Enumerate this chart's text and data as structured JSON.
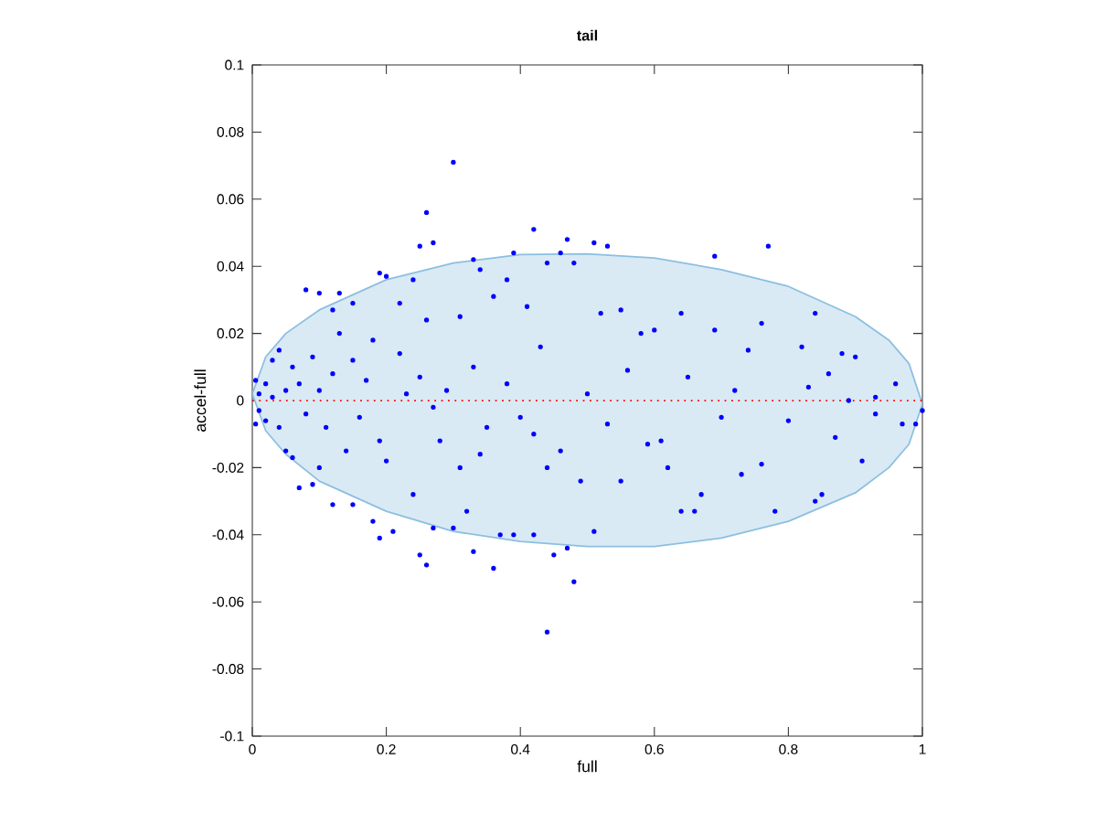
{
  "chart_data": {
    "type": "scatter",
    "title": "tail",
    "xlabel": "full",
    "ylabel": "accel-full",
    "xlim": [
      0,
      1
    ],
    "ylim": [
      -0.1,
      0.1
    ],
    "xticks": [
      0,
      0.2,
      0.4,
      0.6,
      0.8,
      1
    ],
    "yticks": [
      -0.1,
      -0.08,
      -0.06,
      -0.04,
      -0.02,
      0,
      0.02,
      0.04,
      0.06,
      0.08,
      0.1
    ],
    "grid": false,
    "ref_lines": [
      {
        "axis": "y",
        "value": 0,
        "color": "#ff0000",
        "line_style": "dotted"
      }
    ],
    "series": [
      {
        "type": "area",
        "marker": "none",
        "color": "#8cbfe0",
        "x": [
          0,
          0.02,
          0.05,
          0.1,
          0.2,
          0.3,
          0.4,
          0.5,
          0.6,
          0.7,
          0.8,
          0.9,
          0.95,
          0.98,
          1,
          0.98,
          0.95,
          0.9,
          0.8,
          0.7,
          0.6,
          0.5,
          0.4,
          0.3,
          0.2,
          0.1,
          0.05,
          0.02
        ],
        "values": [
          0.002,
          0.013,
          0.02,
          0.027,
          0.036,
          0.041,
          0.0435,
          0.0437,
          0.0425,
          0.039,
          0.034,
          0.025,
          0.018,
          0.011,
          -0.001,
          -0.013,
          -0.02,
          -0.0275,
          -0.036,
          -0.041,
          -0.0435,
          -0.0435,
          -0.042,
          -0.039,
          -0.033,
          -0.024,
          -0.016,
          -0.009
        ]
      },
      {
        "marker": "circle",
        "color": "#0000ff",
        "x": [
          0.3,
          0.26,
          0.27,
          0.25,
          0.42,
          0.47,
          0.51,
          0.53,
          0.69,
          0.77,
          0.46,
          0.39,
          0.08,
          0.1,
          0.13,
          0.19,
          0.2,
          0.24,
          0.33,
          0.34,
          0.44,
          0.48,
          0.38,
          0.36,
          0.22,
          0.15,
          0.12,
          0.26,
          0.31,
          0.41,
          0.52,
          0.55,
          0.58,
          0.6,
          0.64,
          0.69,
          0.74,
          0.76,
          0.82,
          0.84,
          0.88,
          0.9,
          0.86,
          0.93,
          0.96,
          0.99,
          1.0,
          0.97,
          0.91,
          0.85,
          0.84,
          0.78,
          0.73,
          0.76,
          0.66,
          0.64,
          0.67,
          0.62,
          0.59,
          0.55,
          0.51,
          0.49,
          0.46,
          0.42,
          0.44,
          0.45,
          0.47,
          0.48,
          0.44,
          0.42,
          0.39,
          0.36,
          0.37,
          0.33,
          0.32,
          0.3,
          0.26,
          0.25,
          0.27,
          0.21,
          0.19,
          0.18,
          0.15,
          0.12,
          0.09,
          0.07,
          0.06,
          0.1,
          0.14,
          0.2,
          0.24,
          0.28,
          0.31,
          0.35,
          0.4,
          0.38,
          0.33,
          0.29,
          0.25,
          0.22,
          0.18,
          0.15,
          0.12,
          0.1,
          0.08,
          0.06,
          0.05,
          0.04,
          0.03,
          0.02,
          0.02,
          0.01,
          0.01,
          0.005,
          0.005,
          0.03,
          0.04,
          0.05,
          0.07,
          0.09,
          0.11,
          0.13,
          0.16,
          0.17,
          0.19,
          0.23,
          0.27,
          0.34,
          0.43,
          0.5,
          0.53,
          0.56,
          0.61,
          0.65,
          0.7,
          0.72,
          0.8,
          0.83,
          0.87,
          0.89,
          0.93
        ],
        "values": [
          0.071,
          0.056,
          0.047,
          0.046,
          0.051,
          0.048,
          0.047,
          0.046,
          0.043,
          0.046,
          0.044,
          0.044,
          0.033,
          0.032,
          0.032,
          0.038,
          0.037,
          0.036,
          0.042,
          0.039,
          0.041,
          0.041,
          0.036,
          0.031,
          0.029,
          0.029,
          0.027,
          0.024,
          0.025,
          0.028,
          0.026,
          0.027,
          0.02,
          0.021,
          0.026,
          0.021,
          0.015,
          0.023,
          0.016,
          0.026,
          0.014,
          0.013,
          0.008,
          0.001,
          0.005,
          -0.007,
          -0.003,
          -0.007,
          -0.018,
          -0.028,
          -0.03,
          -0.033,
          -0.022,
          -0.019,
          -0.033,
          -0.033,
          -0.028,
          -0.02,
          -0.013,
          -0.024,
          -0.039,
          -0.024,
          -0.015,
          -0.01,
          -0.02,
          -0.046,
          -0.044,
          -0.054,
          -0.069,
          -0.04,
          -0.04,
          -0.05,
          -0.04,
          -0.045,
          -0.033,
          -0.038,
          -0.049,
          -0.046,
          -0.038,
          -0.039,
          -0.041,
          -0.036,
          -0.031,
          -0.031,
          -0.025,
          -0.026,
          -0.017,
          -0.02,
          -0.015,
          -0.018,
          -0.028,
          -0.012,
          -0.02,
          -0.008,
          -0.005,
          0.005,
          0.01,
          0.003,
          0.007,
          0.014,
          0.018,
          0.012,
          0.008,
          0.003,
          -0.004,
          0.01,
          0.003,
          -0.008,
          0.012,
          0.005,
          -0.006,
          0.002,
          -0.003,
          0.006,
          -0.007,
          0.001,
          0.015,
          -0.015,
          0.005,
          0.013,
          -0.008,
          0.02,
          -0.005,
          0.006,
          -0.012,
          0.002,
          -0.002,
          -0.016,
          0.016,
          0.002,
          -0.007,
          0.009,
          -0.012,
          0.007,
          -0.005,
          0.003,
          -0.006,
          0.004,
          -0.011,
          0.0,
          -0.004
        ]
      }
    ]
  }
}
